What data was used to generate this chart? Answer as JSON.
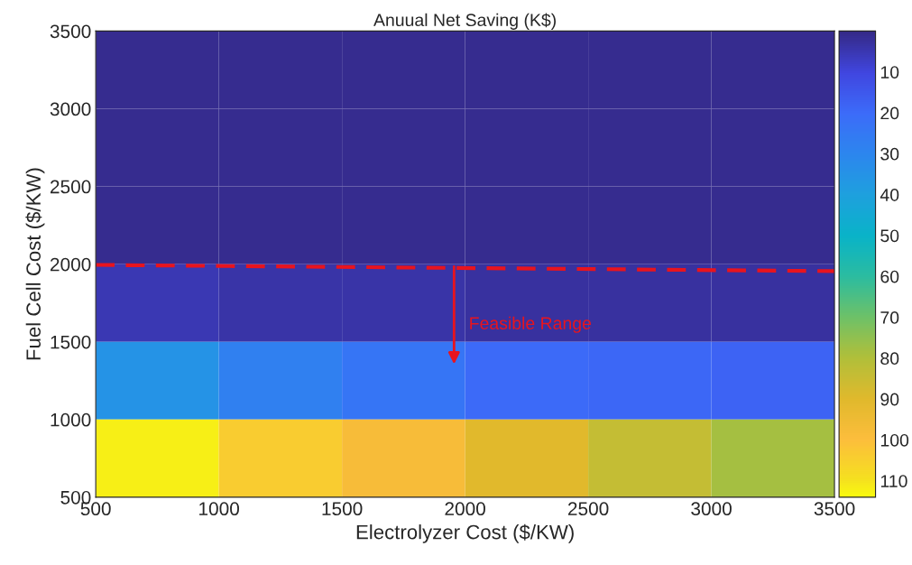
{
  "chart_data": {
    "type": "heatmap",
    "title": "Anuual Net Saving (K$)",
    "xlabel": "Electrolyzer Cost ($/KW)",
    "ylabel": "Fuel Cell Cost ($/KW)",
    "cells": [
      [
        1,
        1,
        1,
        1,
        1,
        1
      ],
      [
        1,
        1,
        1,
        1,
        1,
        1
      ],
      [
        1,
        1,
        1,
        1,
        1,
        1
      ],
      [
        5,
        4,
        4,
        3,
        3,
        3
      ],
      [
        35,
        28,
        24,
        20,
        19,
        18
      ],
      [
        112,
        104,
        98,
        90,
        84,
        78
      ]
    ],
    "xlim": [
      500,
      3500
    ],
    "xticks": [
      500,
      1000,
      1500,
      2000,
      2500,
      3000,
      3500
    ],
    "ylim": [
      500,
      3500
    ],
    "yticks": [
      500,
      1000,
      1500,
      2000,
      2500,
      3000,
      3500
    ],
    "clim": [
      0,
      114
    ],
    "cticks": [
      10,
      20,
      30,
      40,
      50,
      60,
      70,
      80,
      90,
      100,
      110
    ],
    "series": [
      {
        "type": "line",
        "x": [
          500,
          3500
        ],
        "values": [
          1995,
          1955
        ],
        "color": "#e8141e",
        "line_style": "dashed"
      }
    ],
    "annotations": [
      "Feasible Range"
    ]
  }
}
